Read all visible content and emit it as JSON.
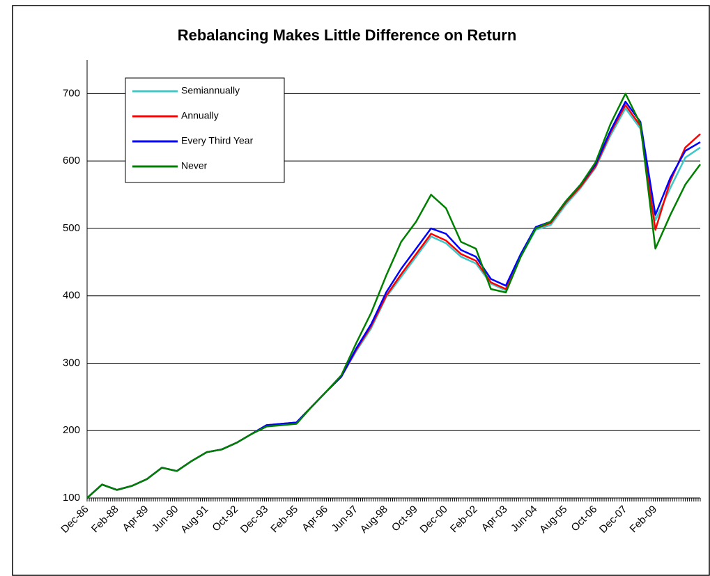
{
  "chart_data": {
    "type": "line",
    "title": "Rebalancing Makes Little Difference on Return",
    "categories": [
      "Dec-86",
      null,
      "Feb-88",
      null,
      "Apr-89",
      null,
      "Jun-90",
      null,
      "Aug-91",
      null,
      "Oct-92",
      null,
      "Dec-93",
      null,
      "Feb-95",
      null,
      "Apr-96",
      null,
      "Jun-97",
      null,
      "Aug-98",
      null,
      "Oct-99",
      null,
      "Dec-00",
      null,
      "Feb-02",
      null,
      "Apr-03",
      null,
      "Jun-04",
      null,
      "Aug-05",
      null,
      "Oct-06",
      null,
      "Dec-07",
      null,
      "Feb-09",
      null,
      null,
      null
    ],
    "series": [
      {
        "name": "Semiannually",
        "color": "#40c8c8",
        "values": [
          100,
          120,
          112,
          118,
          128,
          145,
          140,
          155,
          168,
          172,
          182,
          195,
          208,
          210,
          212,
          235,
          258,
          280,
          318,
          352,
          398,
          428,
          458,
          488,
          478,
          458,
          448,
          418,
          408,
          458,
          498,
          505,
          535,
          560,
          590,
          638,
          678,
          648,
          512,
          560,
          605,
          620
        ]
      },
      {
        "name": "Annually",
        "color": "#ff0000",
        "values": [
          100,
          120,
          112,
          118,
          128,
          145,
          140,
          155,
          168,
          172,
          182,
          195,
          208,
          210,
          212,
          235,
          258,
          280,
          320,
          355,
          400,
          432,
          462,
          492,
          482,
          462,
          452,
          420,
          410,
          460,
          500,
          508,
          538,
          562,
          592,
          642,
          683,
          652,
          498,
          570,
          620,
          640
        ]
      },
      {
        "name": "Every Third Year",
        "color": "#0000ff",
        "values": [
          100,
          120,
          112,
          118,
          128,
          145,
          140,
          155,
          168,
          172,
          182,
          195,
          208,
          210,
          212,
          235,
          258,
          280,
          322,
          358,
          405,
          440,
          470,
          500,
          492,
          468,
          458,
          425,
          415,
          462,
          502,
          510,
          540,
          565,
          595,
          645,
          688,
          658,
          520,
          575,
          615,
          628
        ]
      },
      {
        "name": "Never",
        "color": "#008000",
        "values": [
          100,
          120,
          112,
          118,
          128,
          145,
          140,
          155,
          168,
          172,
          182,
          195,
          206,
          208,
          210,
          235,
          258,
          282,
          330,
          375,
          430,
          480,
          510,
          550,
          530,
          480,
          470,
          410,
          405,
          458,
          500,
          510,
          540,
          565,
          598,
          655,
          700,
          655,
          470,
          520,
          565,
          595
        ]
      }
    ],
    "ylim": [
      100,
      750
    ],
    "yticks": [
      100,
      200,
      300,
      400,
      500,
      600,
      700
    ],
    "grid": true
  }
}
